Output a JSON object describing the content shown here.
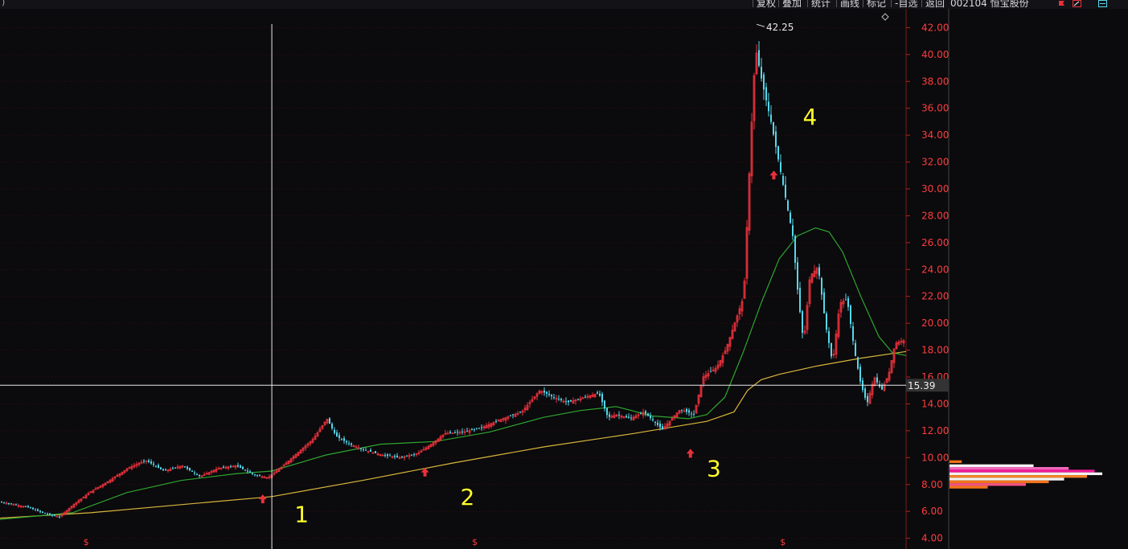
{
  "toolbar": {
    "left_glyph": ")",
    "buttons": [
      "复权",
      "叠加",
      "统计",
      "画线",
      "标记",
      "-自选",
      "返回"
    ],
    "stock": "002104 恒宝股份"
  },
  "chart_data": {
    "type": "candlestick",
    "y_ticks": [
      "42.00",
      "40.00",
      "38.00",
      "36.00",
      "34.00",
      "32.00",
      "30.00",
      "28.00",
      "26.00",
      "24.00",
      "22.00",
      "20.00",
      "18.00",
      "16.00",
      "14.00",
      "12.00",
      "10.00",
      "8.00",
      "6.00",
      "4.00"
    ],
    "ylim": [
      3.2,
      43.4
    ],
    "x_range": [
      0,
      100
    ],
    "crosshair": {
      "x": 30,
      "price": 15.39,
      "label": "15.39"
    },
    "peak_label": "42.25",
    "peak": {
      "x": 83.5,
      "y": 42.25
    },
    "annotations": [
      {
        "text": "1",
        "x": 32.5,
        "y": 5.2
      },
      {
        "text": "2",
        "x": 50.8,
        "y": 6.5
      },
      {
        "text": "3",
        "x": 78.0,
        "y": 8.6
      },
      {
        "text": "4",
        "x": 88.6,
        "y": 34.8
      }
    ],
    "signal_arrows": [
      {
        "x": 29.0,
        "y": 6.9
      },
      {
        "x": 46.9,
        "y": 8.9
      },
      {
        "x": 76.2,
        "y": 10.3
      },
      {
        "x": 85.4,
        "y": 31.0
      }
    ],
    "s_markers": [
      {
        "text": "$",
        "x": 9.5
      },
      {
        "text": "$",
        "x": 52.4
      },
      {
        "text": "$",
        "x": 86.4
      }
    ],
    "price_path": [
      [
        0,
        6.7
      ],
      [
        3,
        6.3
      ],
      [
        5,
        5.8
      ],
      [
        6.5,
        5.6
      ],
      [
        8,
        6.5
      ],
      [
        10,
        7.5
      ],
      [
        12,
        8.3
      ],
      [
        14,
        9.2
      ],
      [
        16,
        9.8
      ],
      [
        18,
        9.0
      ],
      [
        20,
        9.4
      ],
      [
        22,
        8.6
      ],
      [
        24,
        9.2
      ],
      [
        26,
        9.4
      ],
      [
        28,
        8.7
      ],
      [
        29.5,
        8.5
      ],
      [
        31,
        9.3
      ],
      [
        33,
        10.5
      ],
      [
        34.5,
        11.4
      ],
      [
        36,
        12.9
      ],
      [
        37,
        11.6
      ],
      [
        38.5,
        11.0
      ],
      [
        40,
        10.6
      ],
      [
        42,
        10.2
      ],
      [
        44,
        10.0
      ],
      [
        46,
        10.3
      ],
      [
        47.5,
        11.0
      ],
      [
        49,
        11.8
      ],
      [
        51,
        11.9
      ],
      [
        53,
        12.2
      ],
      [
        55,
        12.8
      ],
      [
        57.5,
        13.4
      ],
      [
        59.5,
        15.0
      ],
      [
        61,
        14.5
      ],
      [
        62.5,
        14.1
      ],
      [
        64,
        14.4
      ],
      [
        66,
        14.8
      ],
      [
        67,
        13.0
      ],
      [
        68,
        13.2
      ],
      [
        69.5,
        12.9
      ],
      [
        71,
        13.4
      ],
      [
        73,
        12.1
      ],
      [
        75,
        13.6
      ],
      [
        76.5,
        13.2
      ],
      [
        77.5,
        16.0
      ],
      [
        79,
        16.7
      ],
      [
        80,
        18.0
      ],
      [
        81,
        20.0
      ],
      [
        82,
        22.0
      ],
      [
        82.8,
        34.0
      ],
      [
        83.3,
        40.5
      ],
      [
        84,
        38.0
      ],
      [
        85,
        35.0
      ],
      [
        86,
        31.5
      ],
      [
        86.7,
        29.0
      ],
      [
        87.4,
        26.5
      ],
      [
        88,
        22.0
      ],
      [
        88.6,
        18.5
      ],
      [
        89.3,
        23.5
      ],
      [
        90.2,
        24.2
      ],
      [
        91,
        20.0
      ],
      [
        91.8,
        17.0
      ],
      [
        92.6,
        21.5
      ],
      [
        93.4,
        21.8
      ],
      [
        94.2,
        18.0
      ],
      [
        94.9,
        15.5
      ],
      [
        95.6,
        14.0
      ],
      [
        96.4,
        16.0
      ],
      [
        97.2,
        15.0
      ],
      [
        98,
        16.2
      ],
      [
        98.7,
        18.5
      ],
      [
        99.5,
        18.7
      ]
    ],
    "ma_green": [
      [
        0,
        5.4
      ],
      [
        8,
        5.9
      ],
      [
        14,
        7.4
      ],
      [
        20,
        8.3
      ],
      [
        26,
        8.8
      ],
      [
        30,
        9.0
      ],
      [
        36,
        10.2
      ],
      [
        42,
        11.0
      ],
      [
        48,
        11.2
      ],
      [
        54,
        11.9
      ],
      [
        60,
        13.0
      ],
      [
        64,
        13.5
      ],
      [
        68,
        13.8
      ],
      [
        72,
        13.1
      ],
      [
        76,
        12.9
      ],
      [
        78,
        13.2
      ],
      [
        80,
        14.5
      ],
      [
        82,
        17.8
      ],
      [
        84,
        21.5
      ],
      [
        86,
        24.8
      ],
      [
        88,
        26.5
      ],
      [
        90,
        27.1
      ],
      [
        91.5,
        26.8
      ],
      [
        93,
        25.3
      ],
      [
        95,
        22.0
      ],
      [
        97,
        19.0
      ],
      [
        98.5,
        17.8
      ],
      [
        100,
        17.6
      ]
    ],
    "ma_yellow": [
      [
        0,
        5.5
      ],
      [
        10,
        5.9
      ],
      [
        20,
        6.5
      ],
      [
        30,
        7.1
      ],
      [
        40,
        8.3
      ],
      [
        50,
        9.6
      ],
      [
        60,
        10.8
      ],
      [
        70,
        11.8
      ],
      [
        78,
        12.7
      ],
      [
        81,
        13.4
      ],
      [
        82.5,
        15.0
      ],
      [
        84,
        15.8
      ],
      [
        86,
        16.2
      ],
      [
        90,
        16.8
      ],
      [
        95,
        17.4
      ],
      [
        100,
        17.9
      ]
    ],
    "volume_profile": [
      {
        "price": 9.7,
        "value": 0.08,
        "color": "#ff7a1a"
      },
      {
        "price": 9.4,
        "value": 0.55,
        "color": "#ffffff"
      },
      {
        "price": 9.2,
        "value": 0.78,
        "color": "#ff6ec7"
      },
      {
        "price": 9.0,
        "value": 0.95,
        "color": "#ff1aa0"
      },
      {
        "price": 8.8,
        "value": 1.0,
        "color": "#ffffff"
      },
      {
        "price": 8.6,
        "value": 0.9,
        "color": "#ff8a2a"
      },
      {
        "price": 8.4,
        "value": 0.75,
        "color": "#ffffff"
      },
      {
        "price": 8.2,
        "value": 0.65,
        "color": "#ff7a1a"
      },
      {
        "price": 8.0,
        "value": 0.5,
        "color": "#ff5a8a"
      },
      {
        "price": 7.8,
        "value": 0.25,
        "color": "#ff7a1a"
      }
    ]
  },
  "colors": {
    "up": "#e8313b",
    "down": "#56d8ea",
    "ma_green": "#2ea62e",
    "ma_yellow": "#d8b63a",
    "axis_text": "#ff3d3d",
    "annotation": "#ffff2a",
    "crosshair": "#e8e8e8"
  }
}
